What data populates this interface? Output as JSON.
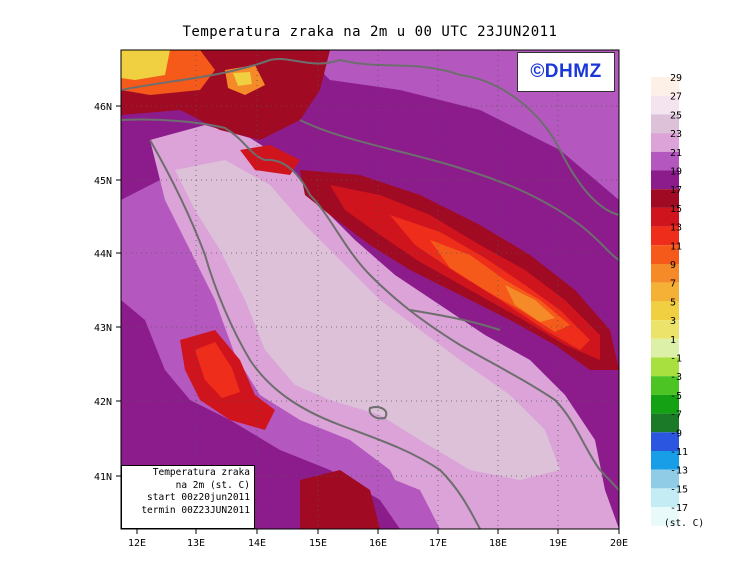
{
  "title": "Temperatura zraka na 2m u 00 UTC 23JUN2011",
  "watermark": "©DHMZ",
  "info_box": {
    "line1": "Temperatura zraka",
    "line2": "na 2m (st. C)",
    "line3": "start 00z20jun2011",
    "line4": "termin 00Z23JUN2011"
  },
  "lon_labels": [
    "12E",
    "13E",
    "14E",
    "15E",
    "16E",
    "17E",
    "18E",
    "19E",
    "20E"
  ],
  "lat_labels": [
    "41N",
    "42N",
    "43N",
    "44N",
    "45N",
    "46N"
  ],
  "legend": {
    "unit": "(st. C)",
    "levels": [
      {
        "label": "29",
        "color": "#fdf0e6"
      },
      {
        "label": "27",
        "color": "#f4e4f0"
      },
      {
        "label": "25",
        "color": "#dcc1d8"
      },
      {
        "label": "23",
        "color": "#dba3d8"
      },
      {
        "label": "21",
        "color": "#b458c0"
      },
      {
        "label": "19",
        "color": "#8c1c8c"
      },
      {
        "label": "17",
        "color": "#a00a22"
      },
      {
        "label": "15",
        "color": "#d0141e"
      },
      {
        "label": "13",
        "color": "#ee2e1a"
      },
      {
        "label": "11",
        "color": "#f55a1a"
      },
      {
        "label": "9",
        "color": "#f58a28"
      },
      {
        "label": "7",
        "color": "#f5b036"
      },
      {
        "label": "5",
        "color": "#f0d040"
      },
      {
        "label": "3",
        "color": "#ece46a"
      },
      {
        "label": "1",
        "color": "#dcf0a8"
      },
      {
        "label": "-1",
        "color": "#a8e040"
      },
      {
        "label": "-3",
        "color": "#4cc424"
      },
      {
        "label": "-5",
        "color": "#14a214"
      },
      {
        "label": "-7",
        "color": "#1a7a28"
      },
      {
        "label": "-9",
        "color": "#2a56e0"
      },
      {
        "label": "-11",
        "color": "#189ee6"
      },
      {
        "label": "-13",
        "color": "#90cce6"
      },
      {
        "label": "-15",
        "color": "#c4ecf4"
      },
      {
        "label": "-17",
        "color": "#e8fafa"
      }
    ]
  },
  "colors": {
    "sea_low": "#dba3d8",
    "sea_warm": "#dcc1d8",
    "land_21": "#b458c0",
    "land_19": "#8c1c8c",
    "ridge_17": "#a00a22",
    "ridge_15": "#d0141e",
    "ridge_13": "#ee2e1a",
    "ridge_11": "#f55a1a",
    "ridge_9": "#f58a28",
    "ridge_5": "#f0d040",
    "coast": "#6e6e6e"
  }
}
